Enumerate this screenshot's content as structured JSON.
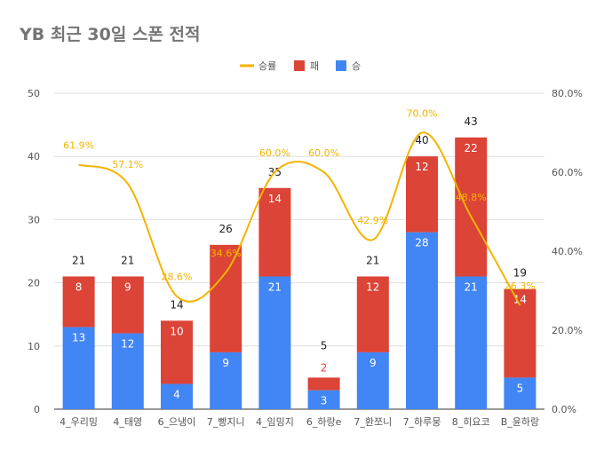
{
  "chart_data": {
    "type": "bar",
    "stacked": true,
    "title": "YB 최근 30일 스폰 전적",
    "categories": [
      "4_우리밍",
      "4_태영",
      "6_으냉이",
      "7_빵지니",
      "4_임밍지",
      "6_하랑e",
      "7_환쪼니",
      "7_하루뭉",
      "8_히요코",
      "B_윤하랑"
    ],
    "series": [
      {
        "name": "승",
        "color": "#4285f4",
        "values": [
          13,
          12,
          4,
          9,
          21,
          3,
          9,
          28,
          21,
          5
        ]
      },
      {
        "name": "패",
        "color": "#db4437",
        "values": [
          8,
          9,
          10,
          17,
          14,
          2,
          12,
          12,
          22,
          14
        ]
      }
    ],
    "totals": [
      21,
      21,
      14,
      26,
      35,
      5,
      21,
      40,
      43,
      19
    ],
    "line_series": {
      "name": "승률",
      "color": "#f4b400",
      "values": [
        61.9,
        57.1,
        28.6,
        34.6,
        60.0,
        60.0,
        42.9,
        70.0,
        48.8,
        26.3
      ]
    },
    "rate_labels": [
      "61.9%",
      "57.1%",
      "28.6%",
      "34.6%",
      "60.0%",
      "60.0%",
      "42.9%",
      "70.0%",
      "48.8%",
      "26.3%"
    ],
    "loss_labels": [
      "8",
      "9",
      "10",
      "",
      "14",
      "2",
      "12",
      "12",
      "22",
      "14"
    ],
    "win_labels": [
      "13",
      "12",
      "4",
      "9",
      "21",
      "3",
      "9",
      "28",
      "21",
      "5"
    ],
    "legend": [
      "승률",
      "패",
      "승"
    ],
    "legend_position": "top",
    "ylim": [
      0,
      50
    ],
    "y_ticks": [
      "0",
      "10",
      "20",
      "30",
      "40",
      "50"
    ],
    "y2lim": [
      0,
      80
    ],
    "y2_ticks": [
      "0.0%",
      "20.0%",
      "40.0%",
      "60.0%",
      "80.0%"
    ],
    "xlabel": "",
    "ylabel": ""
  }
}
